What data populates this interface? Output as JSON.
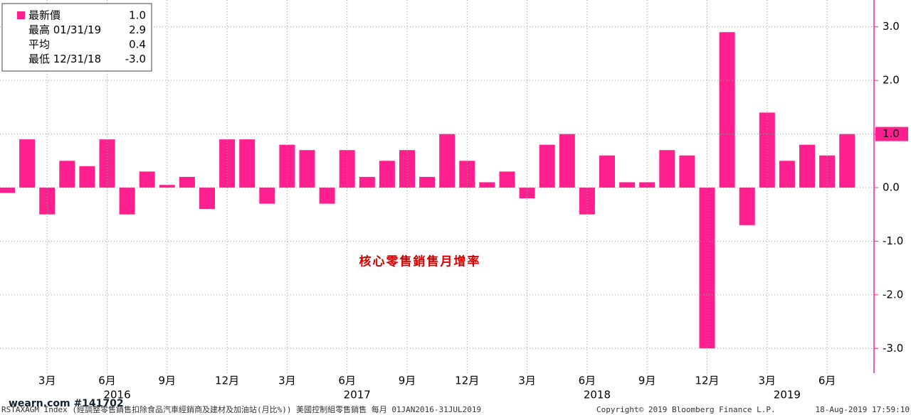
{
  "chart_data": {
    "type": "bar",
    "annotation": "核心零售銷售月增率",
    "categories": [
      null,
      null,
      "3月",
      null,
      null,
      "6月",
      null,
      null,
      "9月",
      null,
      null,
      "12月",
      null,
      null,
      "3月",
      null,
      null,
      "6月",
      null,
      null,
      "9月",
      null,
      null,
      "12月",
      null,
      null,
      "3月",
      null,
      null,
      "6月",
      null,
      null,
      "9月",
      null,
      null,
      "12月",
      null,
      null,
      "3月",
      null,
      null,
      "6月",
      null
    ],
    "year_labels": [
      "2016",
      "2017",
      "2018",
      "2019"
    ],
    "values": [
      -0.1,
      0.9,
      -0.5,
      0.5,
      0.4,
      0.9,
      -0.5,
      0.3,
      0.05,
      0.2,
      -0.4,
      0.9,
      0.9,
      -0.3,
      0.8,
      0.7,
      -0.3,
      0.7,
      0.2,
      0.5,
      0.7,
      0.2,
      1.0,
      0.5,
      0.1,
      0.3,
      -0.2,
      0.8,
      1.0,
      -0.5,
      0.6,
      0.1,
      0.1,
      0.7,
      0.6,
      -3.0,
      2.9,
      -0.7,
      1.4,
      0.5,
      0.8,
      0.6,
      1.0
    ],
    "color": "#ff1f8e",
    "ylim": [
      -3.46,
      3.5
    ],
    "yticks": [
      {
        "value": 3,
        "label": "3.0"
      },
      {
        "value": 2,
        "label": "2.0"
      },
      {
        "value": 1,
        "label": "1.0"
      },
      {
        "value": 0,
        "label": "0.0"
      },
      {
        "value": -1,
        "label": "-1.0"
      },
      {
        "value": -2,
        "label": "-2.0"
      },
      {
        "value": -3,
        "label": "-3.0"
      }
    ],
    "last_value": {
      "value": 1.0,
      "label": "1.0"
    },
    "grid": true,
    "legend": [
      {
        "name": "最新價",
        "value": "1.0"
      },
      {
        "name": "最高 01/31/19",
        "value": "2.9"
      },
      {
        "name": "平均",
        "value": "0.4"
      },
      {
        "name": "最低 12/31/18",
        "value": "-3.0"
      }
    ],
    "watermark": "wearn.com #141702",
    "footer": {
      "source": "RSTAXAGM Index (經調整零售銷售扣除食品汽車經銷商及建材及加油站(月比%)) 美國控制組零售銷售  每月 01JAN2016-31JUL2019",
      "copyright": "Copyright© 2019 Bloomberg Finance L.P.",
      "timestamp": "18-Aug-2019 17:59:10"
    }
  }
}
